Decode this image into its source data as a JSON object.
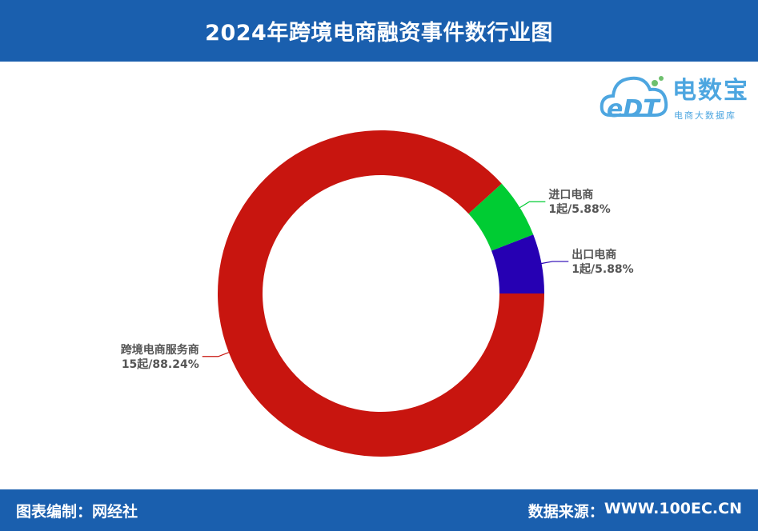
{
  "header": {
    "title": "2024年跨境电商融资事件数行业图"
  },
  "footer": {
    "left_label": "图表编制：",
    "left_value": "网经社",
    "right_label": "数据来源：",
    "right_value": "WWW.100EC.CN"
  },
  "logo": {
    "mark_text": "eDT",
    "brand": "电数宝",
    "subtitle": "电商大数据库"
  },
  "colors": {
    "header_bg": "#1a5fae",
    "slice_1": "#c8150f",
    "slice_2": "#00cc33",
    "slice_3": "#2600b3"
  },
  "chart_data": {
    "type": "pie",
    "donut": true,
    "slices": [
      {
        "label": "跨境电商服务商",
        "count": 15,
        "count_text": "15起",
        "percent": 88.24,
        "percent_text": "88.24%",
        "color": "#c8150f"
      },
      {
        "label": "进口电商",
        "count": 1,
        "count_text": "1起",
        "percent": 5.88,
        "percent_text": "5.88%",
        "color": "#00cc33"
      },
      {
        "label": "出口电商",
        "count": 1,
        "count_text": "1起",
        "percent": 5.88,
        "percent_text": "5.88%",
        "color": "#2600b3"
      }
    ]
  }
}
